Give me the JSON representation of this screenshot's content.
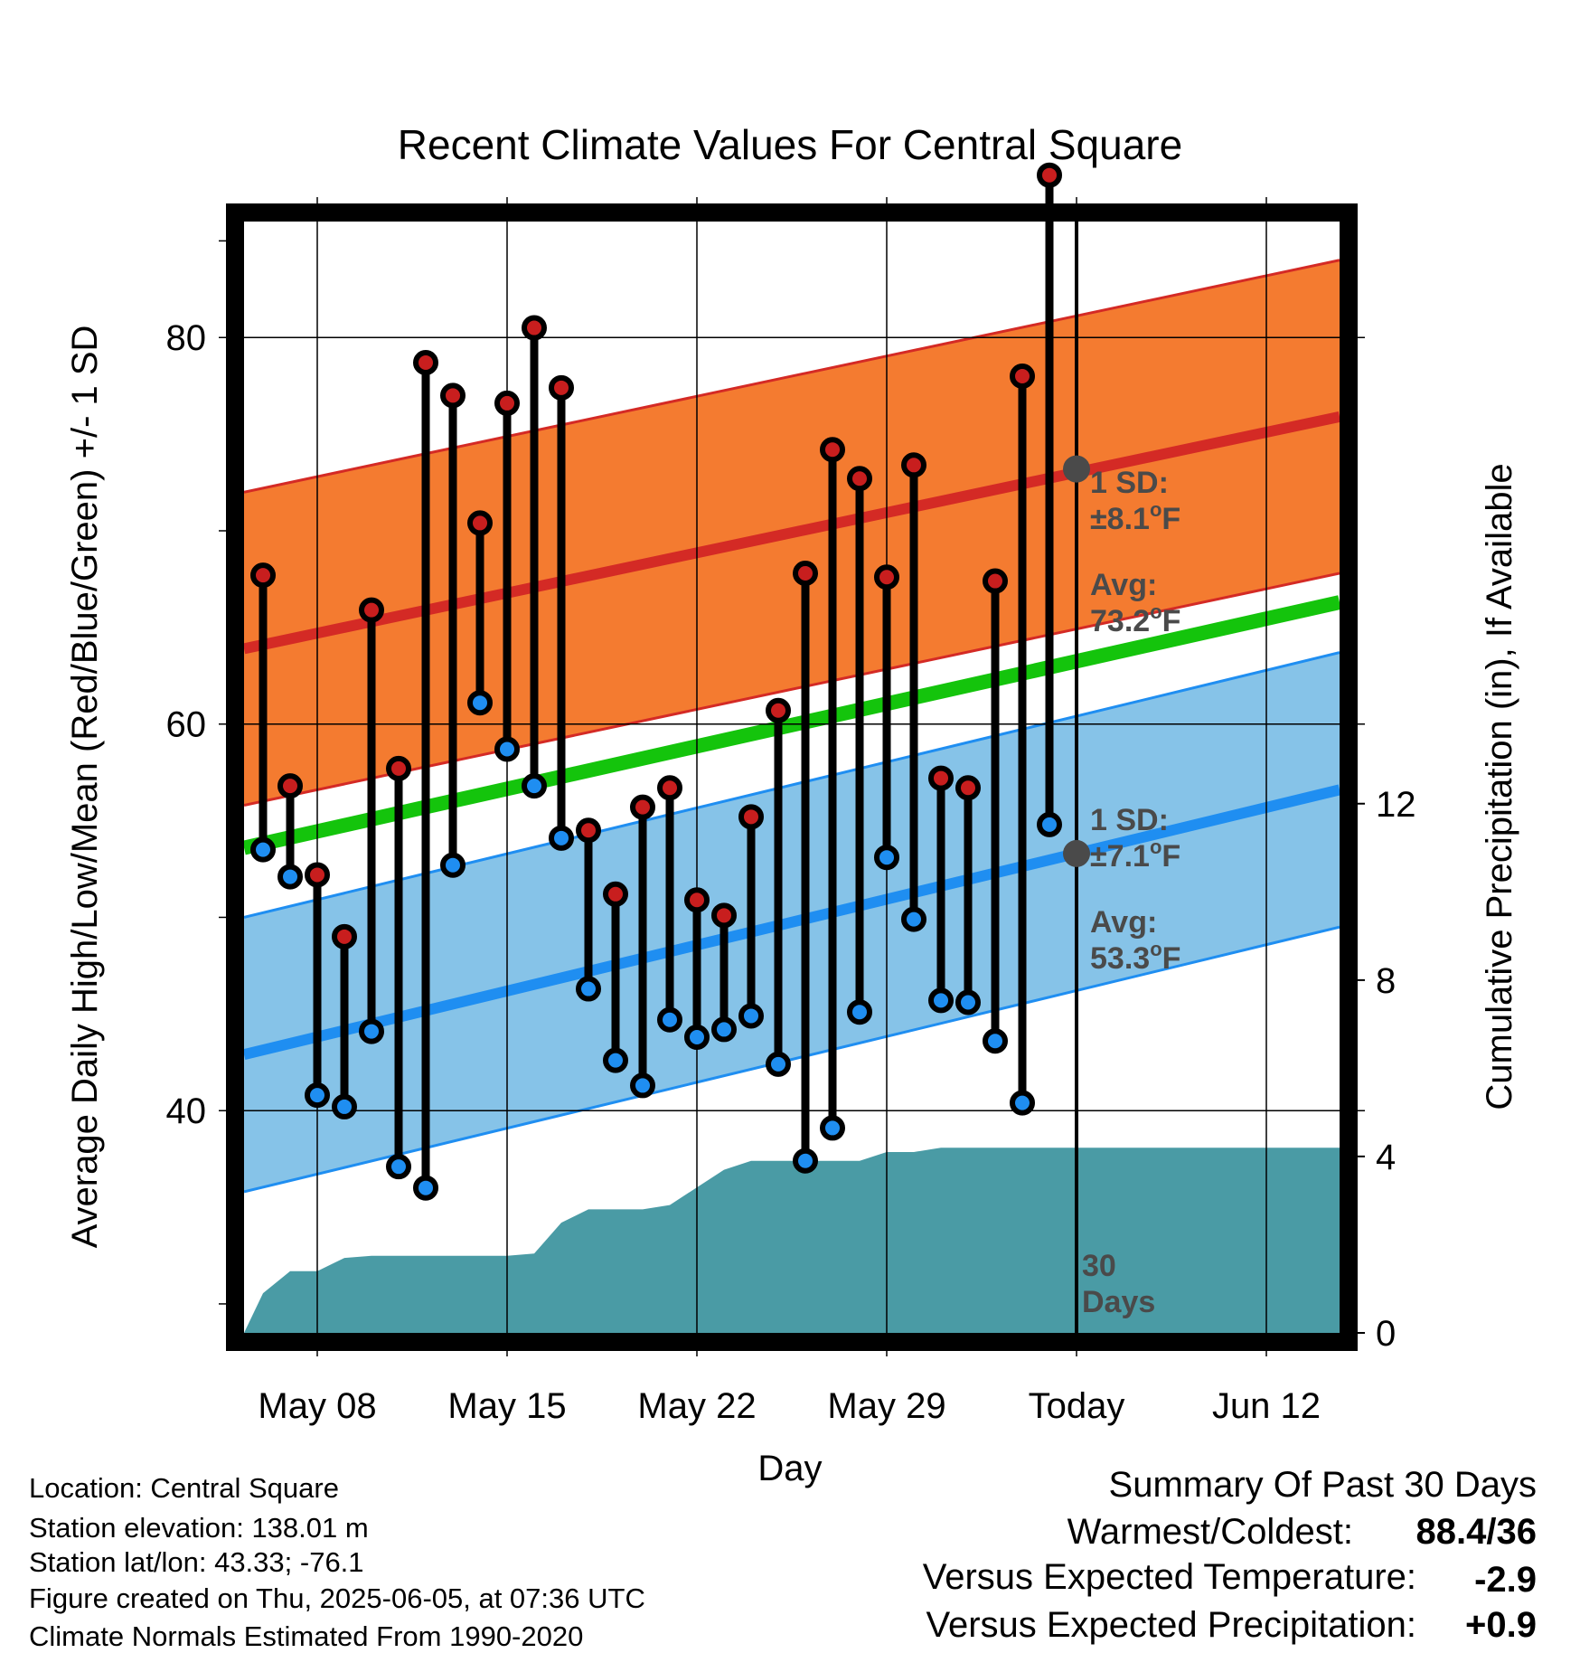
{
  "chart_data": {
    "type": "line",
    "title": "Recent Climate Values For Central Square",
    "xlabel": "Day",
    "ylabel_left": "Average Daily High/Low/Mean (Red/Blue/Green) +/- 1 SD",
    "ylabel_right": "Cumulative Precipitation (in), If Available",
    "x_ticks": [
      "May 08",
      "May 15",
      "May 22",
      "May 29",
      "Today",
      "Jun 12"
    ],
    "y_ticks_left": [
      "40",
      "60",
      "80"
    ],
    "y_ticks_right": [
      "0",
      "4",
      "8",
      "12"
    ],
    "ylim_left": [
      28.5,
      86
    ],
    "ylim_right": [
      0,
      25.2
    ],
    "x_day_range": [
      0.3,
      40.7
    ],
    "x_tick_days": [
      3,
      10,
      17,
      24,
      31,
      38
    ],
    "today_day": 31,
    "highs": [
      67.7,
      56.8,
      52.2,
      49.0,
      65.9,
      57.7,
      78.7,
      77.0,
      70.4,
      76.6,
      80.5,
      77.4,
      54.5,
      51.2,
      55.7,
      56.7,
      50.9,
      50.1,
      55.2,
      60.7,
      67.8,
      74.2,
      72.7,
      67.6,
      73.4,
      57.2,
      56.7,
      67.4,
      78.0,
      88.4
    ],
    "lows": [
      53.5,
      52.1,
      40.8,
      40.2,
      44.1,
      37.1,
      36.0,
      52.7,
      61.1,
      58.7,
      56.8,
      54.1,
      46.3,
      42.6,
      41.3,
      44.7,
      43.8,
      44.2,
      44.9,
      42.4,
      37.4,
      39.1,
      45.1,
      53.1,
      49.9,
      45.7,
      45.6,
      43.6,
      40.4,
      54.8
    ],
    "normal_high": {
      "start": 63.9,
      "end": 75.9,
      "today": 73.2,
      "sd": 8.1
    },
    "normal_low": {
      "start": 42.9,
      "end": 56.6,
      "today": 53.3,
      "sd": 7.1
    },
    "normal_mean": {
      "start": 53.6,
      "end": 66.3
    },
    "precip_cumulative": [
      [
        0.3,
        0.0
      ],
      [
        1,
        0.9
      ],
      [
        2,
        1.4
      ],
      [
        3,
        1.4
      ],
      [
        4,
        1.7
      ],
      [
        5,
        1.75
      ],
      [
        6,
        1.75
      ],
      [
        7,
        1.75
      ],
      [
        8,
        1.75
      ],
      [
        9,
        1.75
      ],
      [
        10,
        1.75
      ],
      [
        11,
        1.8
      ],
      [
        12,
        2.5
      ],
      [
        13,
        2.8
      ],
      [
        14,
        2.8
      ],
      [
        15,
        2.8
      ],
      [
        16,
        2.9
      ],
      [
        17,
        3.3
      ],
      [
        18,
        3.7
      ],
      [
        19,
        3.9
      ],
      [
        20,
        3.9
      ],
      [
        21,
        3.9
      ],
      [
        22,
        3.9
      ],
      [
        23,
        3.9
      ],
      [
        24,
        4.1
      ],
      [
        25,
        4.1
      ],
      [
        26,
        4.2
      ],
      [
        27,
        4.2
      ],
      [
        28,
        4.2
      ],
      [
        40.7,
        4.2
      ]
    ],
    "annotations": {
      "high_sd": "1 SD:\n±8.1°F",
      "high_avg": "Avg:\n73.2°F",
      "low_sd": "1 SD:\n±7.1°F",
      "low_avg": "Avg:\n53.3°F",
      "period": "30\nDays"
    },
    "colors": {
      "high_band": "#f47b30",
      "high_line": "#d42a25",
      "low_band": "#86c3e8",
      "low_line": "#1f8ef1",
      "mean_line": "#14c40c",
      "precip": "#4a9ba5",
      "high_marker": "#c81e1e",
      "low_marker": "#1f8ef1",
      "annotation": "#4a4a4a"
    }
  },
  "footer": {
    "location": "Location: Central Square",
    "elevation": "Station elevation: 138.01 m",
    "latlon": "Station lat/lon: 43.33; -76.1",
    "created": "Figure created on Thu, 2025-06-05, at 07:36 UTC",
    "normals": "Climate Normals Estimated From 1990-2020"
  },
  "summary": {
    "heading": "Summary Of Past 30 Days",
    "warm_cold_label": "Warmest/Coldest:",
    "warm_cold_value": "88.4/36",
    "temp_label": "Versus Expected Temperature:",
    "temp_value": "-2.9",
    "temp_color": "#1f8ef1",
    "precip_label": "Versus Expected Precipitation:",
    "precip_value": "+0.9",
    "precip_color": "#14c40c"
  }
}
